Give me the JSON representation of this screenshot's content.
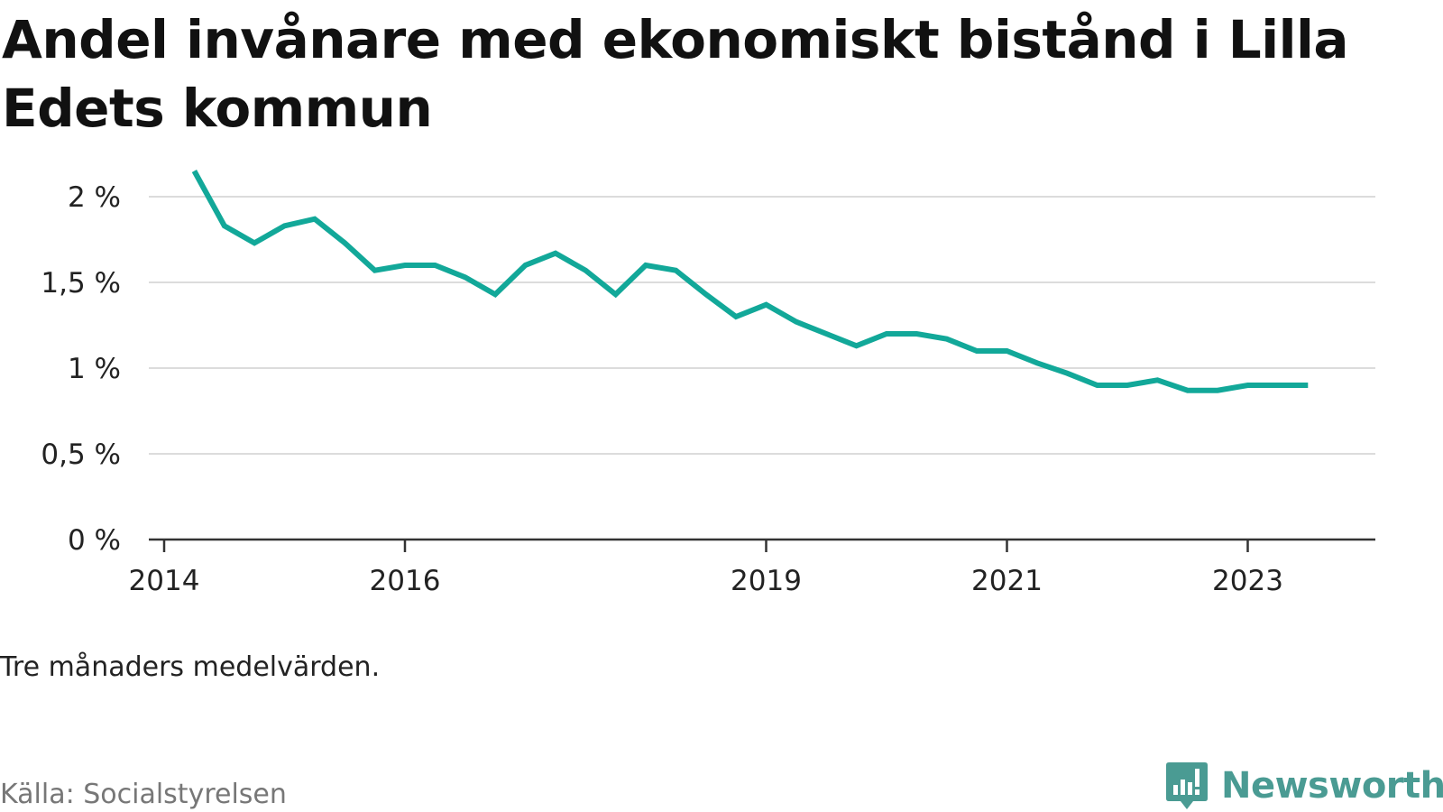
{
  "brand": {
    "name": "Newsworthy",
    "color": "#4a9b93",
    "icon": "bar-chart-speech-bubble-icon"
  },
  "chart_data": {
    "type": "line",
    "title": "Andel invånare med ekonomiskt bistånd i Lilla Edets kommun",
    "note": "Tre månaders medelvärden.",
    "source": "Källa: Socialstyrelsen",
    "xlabel": "",
    "ylabel": "",
    "x_ticks": [
      "2014",
      "2016",
      "2019",
      "2021",
      "2023"
    ],
    "y_ticks": [
      "0 %",
      "0,5 %",
      "1 %",
      "1,5 %",
      "2 %"
    ],
    "ylim": [
      0,
      2.2
    ],
    "xlim": [
      "2014-01",
      "2024-04"
    ],
    "grid": true,
    "line_color": "#12a899",
    "series": [
      {
        "x": [
          "2014-04",
          "2014-07",
          "2014-10",
          "2015-01",
          "2015-04",
          "2015-07",
          "2015-10",
          "2016-01",
          "2016-04",
          "2016-07",
          "2016-10",
          "2017-01",
          "2017-04",
          "2017-07",
          "2017-10",
          "2018-01",
          "2018-04",
          "2018-07",
          "2018-10",
          "2019-01",
          "2019-04",
          "2019-07",
          "2019-10",
          "2020-01",
          "2020-04",
          "2020-07",
          "2020-10",
          "2021-01",
          "2021-04",
          "2021-07",
          "2021-10",
          "2022-01",
          "2022-04",
          "2022-07",
          "2022-10",
          "2023-01",
          "2023-04",
          "2023-07"
        ],
        "values": [
          2.15,
          1.83,
          1.73,
          1.83,
          1.87,
          1.73,
          1.57,
          1.6,
          1.6,
          1.53,
          1.43,
          1.6,
          1.67,
          1.57,
          1.43,
          1.6,
          1.57,
          1.43,
          1.3,
          1.37,
          1.27,
          1.2,
          1.13,
          1.2,
          1.2,
          1.17,
          1.1,
          1.1,
          1.03,
          0.97,
          0.9,
          0.9,
          0.93,
          0.87,
          0.87,
          0.9,
          0.9,
          0.9
        ]
      }
    ]
  }
}
